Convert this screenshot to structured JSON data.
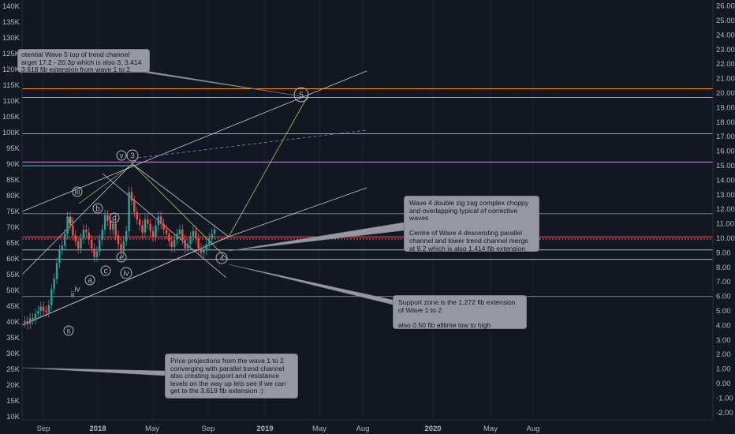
{
  "chart_data": {
    "type": "line",
    "left_axis_ticks": [
      "140K",
      "135K",
      "130K",
      "125K",
      "120K",
      "115K",
      "110K",
      "105K",
      "100K",
      "95K",
      "90K",
      "85K",
      "80K",
      "75K",
      "70K",
      "65K",
      "60K",
      "55K",
      "50K",
      "45K",
      "40K",
      "35K",
      "30K",
      "25K",
      "20K",
      "15K",
      "10K"
    ],
    "right_axis_ticks": [
      "26.00",
      "25.00",
      "24.00",
      "23.00",
      "22.00",
      "21.00",
      "20.00",
      "19.00",
      "18.00",
      "17.00",
      "16.00",
      "15.00",
      "14.00",
      "13.00",
      "12.00",
      "11.00",
      "10.00",
      "9.00",
      "8.00",
      "7.00",
      "6.00",
      "5.00",
      "4.00",
      "3.00",
      "2.00",
      "1.00",
      "0.00",
      "-1.00",
      "-2.00"
    ],
    "right_ylim": [
      -2.6,
      26.7
    ],
    "x_ticks": [
      "Sep",
      "2018",
      "May",
      "Sep",
      "2019",
      "May",
      "Aug",
      "2020",
      "May",
      "Aug"
    ],
    "price_series": [
      4.2,
      4.3,
      4.1,
      4.5,
      4.4,
      4.8,
      5.0,
      5.3,
      5.0,
      4.9,
      5.4,
      6.5,
      7.2,
      8.3,
      9.2,
      9.5,
      10.3,
      11.5,
      10.9,
      10.2,
      9.8,
      9.3,
      10.0,
      10.6,
      10.4,
      9.9,
      9.3,
      8.7,
      9.1,
      9.9,
      10.6,
      11.6,
      11.2,
      10.6,
      11.0,
      10.2,
      9.6,
      9.1,
      9.8,
      10.5,
      13.2,
      12.6,
      11.8,
      11.3,
      10.9,
      10.4,
      11.3,
      11.0,
      10.5,
      10.1,
      10.9,
      11.5,
      11.0,
      10.6,
      10.3,
      9.8,
      9.4,
      9.9,
      10.3,
      10.6,
      9.9,
      9.3,
      9.6,
      10.1,
      10.5,
      10.0,
      9.3,
      9.0,
      9.2,
      9.6,
      10.0,
      10.3,
      10.6
    ],
    "horizontal_levels": [
      {
        "value": 20.3,
        "color": "#ff9800"
      },
      {
        "value": 19.7,
        "color": "#ff9800"
      },
      {
        "value": 17.2,
        "color": "#ff9800"
      },
      {
        "value": 15.25,
        "color": "#e040fb"
      },
      {
        "value": 11.7,
        "color": "#787b86"
      },
      {
        "value": 10.1,
        "color": "#ef5350"
      },
      {
        "value": 9.95,
        "color": "#f06292"
      },
      {
        "value": 9.2,
        "color": "#b2b5be"
      },
      {
        "value": 8.55,
        "color": "#b2b5be"
      },
      {
        "value": 6.0,
        "color": "#787b86"
      }
    ],
    "wave_labels": [
      "5",
      "v",
      "3",
      "iii",
      "b",
      "d",
      "iii",
      "a",
      "c",
      "e",
      "iv",
      "iv",
      "ii",
      "ii",
      "4"
    ],
    "annotations": [
      "otential Wave 5 top of trend channel\narget 17.2 - 20.3p which is also 3, 3.414\n3.618 fib extension from wave 1 to 2",
      "Wave 4 double zig zag complex choppy\nand overlapping  typical of corrective\nwaves\n\nCentre of Wave 4 descending parallel\nchannel and lower trend channel merge\nat 9.2 which  is also 1.414 fib extension\nof wave 1 to 2",
      "Support zone is the 1.272 fib extension\nof Wave 1 to 2\n\nalso 0.50 fib alltime low to high",
      "Price projections from the wave 1 to 2\nconverging with parallel trend channel\nalso creating support and resistance\nlevels on the way up lets see if we can\nget to the 3.618 fib extension :)"
    ]
  }
}
